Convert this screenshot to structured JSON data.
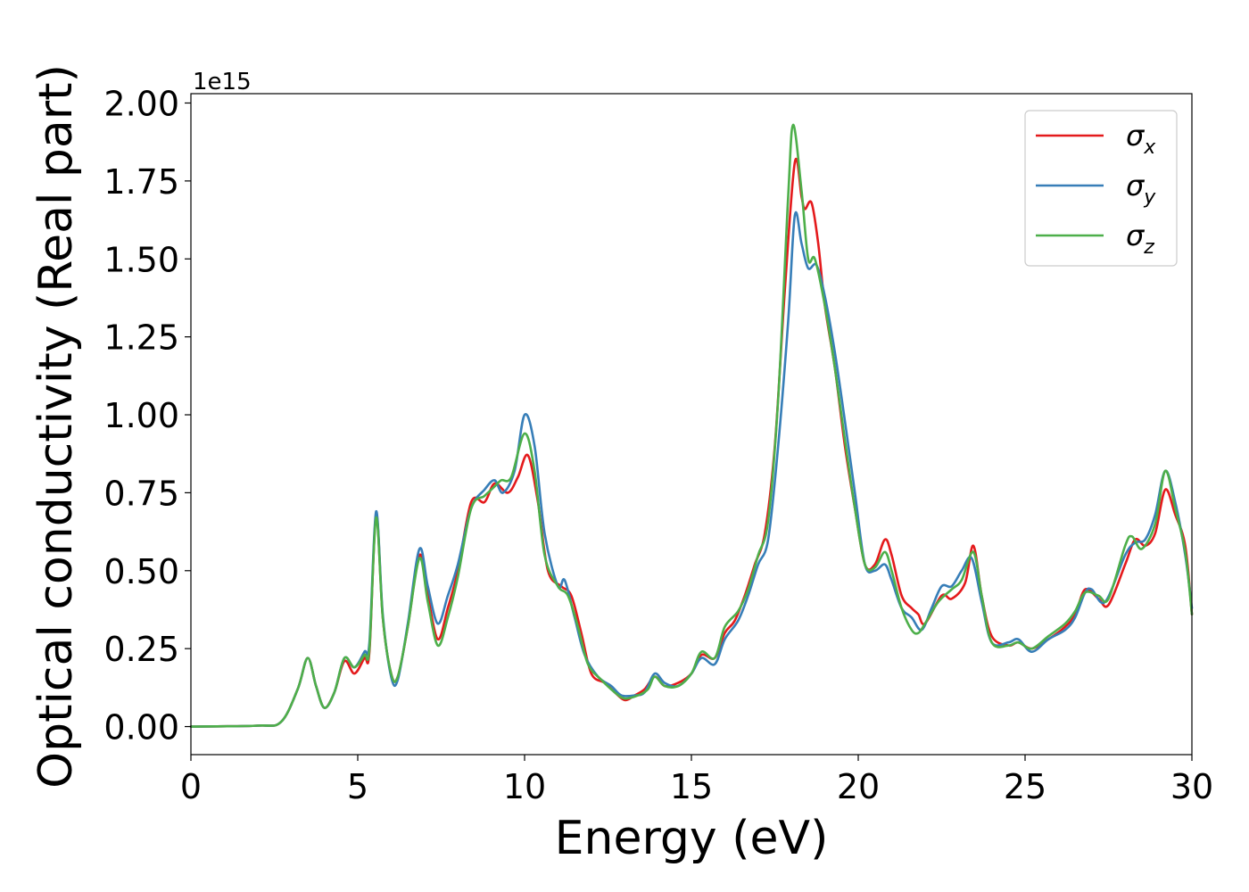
{
  "chart_data": {
    "type": "line",
    "xlabel": "Energy (eV)",
    "ylabel": "Optical conductivity (Real part)",
    "y_offset_label": "1e15",
    "xlim": [
      0,
      30
    ],
    "ylim": [
      -0.09,
      2.03
    ],
    "xticks": [
      0,
      5,
      10,
      15,
      20,
      25,
      30
    ],
    "xtick_labels": [
      "0",
      "5",
      "10",
      "15",
      "20",
      "25",
      "30"
    ],
    "yticks": [
      0.0,
      0.25,
      0.5,
      0.75,
      1.0,
      1.25,
      1.5,
      1.75,
      2.0
    ],
    "ytick_labels": [
      "0.00",
      "0.25",
      "0.50",
      "0.75",
      "1.00",
      "1.25",
      "1.50",
      "1.75",
      "2.00"
    ],
    "grid": false,
    "legend_position": "top-right",
    "series": [
      {
        "name": "σx",
        "base": "σ",
        "sub": "x",
        "color": "#e41a1c",
        "points": [
          [
            0,
            0
          ],
          [
            2,
            0.003
          ],
          [
            2.7,
            0.015
          ],
          [
            3.2,
            0.12
          ],
          [
            3.5,
            0.22
          ],
          [
            3.75,
            0.13
          ],
          [
            4.0,
            0.06
          ],
          [
            4.3,
            0.11
          ],
          [
            4.6,
            0.21
          ],
          [
            4.9,
            0.17
          ],
          [
            5.2,
            0.22
          ],
          [
            5.35,
            0.24
          ],
          [
            5.55,
            0.68
          ],
          [
            5.75,
            0.35
          ],
          [
            6.0,
            0.17
          ],
          [
            6.2,
            0.16
          ],
          [
            6.5,
            0.32
          ],
          [
            6.85,
            0.55
          ],
          [
            7.1,
            0.42
          ],
          [
            7.4,
            0.28
          ],
          [
            7.7,
            0.38
          ],
          [
            8.0,
            0.5
          ],
          [
            8.4,
            0.72
          ],
          [
            8.8,
            0.72
          ],
          [
            9.1,
            0.78
          ],
          [
            9.5,
            0.75
          ],
          [
            9.8,
            0.8
          ],
          [
            10.1,
            0.87
          ],
          [
            10.4,
            0.72
          ],
          [
            10.7,
            0.5
          ],
          [
            11.1,
            0.45
          ],
          [
            11.4,
            0.42
          ],
          [
            11.7,
            0.3
          ],
          [
            12.0,
            0.17
          ],
          [
            12.4,
            0.14
          ],
          [
            12.7,
            0.11
          ],
          [
            13.0,
            0.085
          ],
          [
            13.3,
            0.1
          ],
          [
            13.6,
            0.12
          ],
          [
            13.9,
            0.16
          ],
          [
            14.2,
            0.13
          ],
          [
            14.6,
            0.14
          ],
          [
            15.0,
            0.17
          ],
          [
            15.3,
            0.23
          ],
          [
            15.7,
            0.22
          ],
          [
            16.0,
            0.3
          ],
          [
            16.3,
            0.34
          ],
          [
            16.6,
            0.42
          ],
          [
            16.9,
            0.52
          ],
          [
            17.2,
            0.62
          ],
          [
            17.5,
            0.9
          ],
          [
            17.8,
            1.4
          ],
          [
            18.1,
            1.81
          ],
          [
            18.3,
            1.7
          ],
          [
            18.4,
            1.66
          ],
          [
            18.6,
            1.68
          ],
          [
            18.8,
            1.55
          ],
          [
            19.0,
            1.35
          ],
          [
            19.3,
            1.15
          ],
          [
            19.6,
            0.9
          ],
          [
            19.9,
            0.7
          ],
          [
            20.2,
            0.52
          ],
          [
            20.5,
            0.52
          ],
          [
            20.8,
            0.6
          ],
          [
            21.0,
            0.55
          ],
          [
            21.3,
            0.42
          ],
          [
            21.6,
            0.38
          ],
          [
            21.8,
            0.36
          ],
          [
            22.0,
            0.33
          ],
          [
            22.5,
            0.42
          ],
          [
            22.8,
            0.41
          ],
          [
            23.2,
            0.46
          ],
          [
            23.45,
            0.58
          ],
          [
            23.7,
            0.42
          ],
          [
            24.0,
            0.29
          ],
          [
            24.5,
            0.26
          ],
          [
            24.8,
            0.27
          ],
          [
            25.2,
            0.25
          ],
          [
            25.7,
            0.28
          ],
          [
            26.2,
            0.32
          ],
          [
            26.5,
            0.36
          ],
          [
            26.8,
            0.44
          ],
          [
            27.2,
            0.41
          ],
          [
            27.5,
            0.39
          ],
          [
            28.0,
            0.52
          ],
          [
            28.3,
            0.6
          ],
          [
            28.6,
            0.58
          ],
          [
            28.9,
            0.62
          ],
          [
            29.2,
            0.76
          ],
          [
            29.5,
            0.68
          ],
          [
            29.8,
            0.58
          ],
          [
            30.0,
            0.36
          ]
        ]
      },
      {
        "name": "σy",
        "base": "σ",
        "sub": "y",
        "color": "#377eb8",
        "points": [
          [
            0,
            0
          ],
          [
            2,
            0.003
          ],
          [
            2.7,
            0.015
          ],
          [
            3.2,
            0.12
          ],
          [
            3.5,
            0.22
          ],
          [
            3.75,
            0.13
          ],
          [
            4.0,
            0.06
          ],
          [
            4.3,
            0.11
          ],
          [
            4.6,
            0.22
          ],
          [
            4.9,
            0.19
          ],
          [
            5.2,
            0.24
          ],
          [
            5.35,
            0.27
          ],
          [
            5.55,
            0.69
          ],
          [
            5.75,
            0.36
          ],
          [
            6.0,
            0.16
          ],
          [
            6.2,
            0.15
          ],
          [
            6.5,
            0.33
          ],
          [
            6.85,
            0.57
          ],
          [
            7.1,
            0.45
          ],
          [
            7.4,
            0.33
          ],
          [
            7.7,
            0.42
          ],
          [
            8.0,
            0.52
          ],
          [
            8.4,
            0.7
          ],
          [
            8.8,
            0.76
          ],
          [
            9.1,
            0.79
          ],
          [
            9.35,
            0.75
          ],
          [
            9.7,
            0.82
          ],
          [
            10.0,
            1.0
          ],
          [
            10.3,
            0.9
          ],
          [
            10.6,
            0.62
          ],
          [
            11.0,
            0.45
          ],
          [
            11.2,
            0.47
          ],
          [
            11.5,
            0.35
          ],
          [
            11.8,
            0.23
          ],
          [
            12.2,
            0.16
          ],
          [
            12.6,
            0.13
          ],
          [
            12.9,
            0.1
          ],
          [
            13.3,
            0.1
          ],
          [
            13.6,
            0.11
          ],
          [
            13.9,
            0.17
          ],
          [
            14.2,
            0.14
          ],
          [
            14.6,
            0.13
          ],
          [
            15.0,
            0.17
          ],
          [
            15.3,
            0.22
          ],
          [
            15.7,
            0.2
          ],
          [
            16.0,
            0.28
          ],
          [
            16.4,
            0.34
          ],
          [
            16.7,
            0.42
          ],
          [
            17.0,
            0.52
          ],
          [
            17.3,
            0.6
          ],
          [
            17.6,
            0.9
          ],
          [
            17.9,
            1.3
          ],
          [
            18.1,
            1.64
          ],
          [
            18.3,
            1.55
          ],
          [
            18.5,
            1.47
          ],
          [
            18.75,
            1.48
          ],
          [
            19.0,
            1.38
          ],
          [
            19.3,
            1.2
          ],
          [
            19.6,
            0.98
          ],
          [
            19.9,
            0.75
          ],
          [
            20.2,
            0.52
          ],
          [
            20.5,
            0.5
          ],
          [
            20.8,
            0.52
          ],
          [
            21.0,
            0.47
          ],
          [
            21.3,
            0.38
          ],
          [
            21.6,
            0.35
          ],
          [
            21.9,
            0.31
          ],
          [
            22.2,
            0.38
          ],
          [
            22.5,
            0.45
          ],
          [
            22.8,
            0.45
          ],
          [
            23.1,
            0.5
          ],
          [
            23.4,
            0.54
          ],
          [
            23.7,
            0.4
          ],
          [
            24.0,
            0.27
          ],
          [
            24.5,
            0.27
          ],
          [
            24.8,
            0.28
          ],
          [
            25.2,
            0.24
          ],
          [
            25.7,
            0.28
          ],
          [
            26.2,
            0.31
          ],
          [
            26.5,
            0.35
          ],
          [
            26.8,
            0.43
          ],
          [
            27.0,
            0.44
          ],
          [
            27.4,
            0.4
          ],
          [
            28.0,
            0.55
          ],
          [
            28.3,
            0.59
          ],
          [
            28.6,
            0.6
          ],
          [
            28.9,
            0.68
          ],
          [
            29.2,
            0.82
          ],
          [
            29.5,
            0.72
          ],
          [
            29.8,
            0.55
          ],
          [
            30.0,
            0.38
          ]
        ]
      },
      {
        "name": "σz",
        "base": "σ",
        "sub": "z",
        "color": "#4daf4a",
        "points": [
          [
            0,
            0
          ],
          [
            2,
            0.003
          ],
          [
            2.7,
            0.015
          ],
          [
            3.2,
            0.12
          ],
          [
            3.5,
            0.22
          ],
          [
            3.75,
            0.13
          ],
          [
            4.0,
            0.06
          ],
          [
            4.3,
            0.11
          ],
          [
            4.6,
            0.22
          ],
          [
            4.9,
            0.19
          ],
          [
            5.2,
            0.23
          ],
          [
            5.35,
            0.25
          ],
          [
            5.55,
            0.67
          ],
          [
            5.75,
            0.35
          ],
          [
            6.0,
            0.17
          ],
          [
            6.2,
            0.16
          ],
          [
            6.5,
            0.32
          ],
          [
            6.85,
            0.54
          ],
          [
            7.1,
            0.4
          ],
          [
            7.4,
            0.26
          ],
          [
            7.7,
            0.35
          ],
          [
            8.0,
            0.48
          ],
          [
            8.4,
            0.7
          ],
          [
            8.8,
            0.74
          ],
          [
            9.1,
            0.77
          ],
          [
            9.3,
            0.79
          ],
          [
            9.6,
            0.8
          ],
          [
            10.0,
            0.94
          ],
          [
            10.3,
            0.82
          ],
          [
            10.6,
            0.55
          ],
          [
            11.0,
            0.45
          ],
          [
            11.3,
            0.42
          ],
          [
            11.6,
            0.32
          ],
          [
            11.9,
            0.2
          ],
          [
            12.3,
            0.15
          ],
          [
            12.7,
            0.11
          ],
          [
            13.0,
            0.09
          ],
          [
            13.4,
            0.1
          ],
          [
            13.7,
            0.12
          ],
          [
            13.9,
            0.16
          ],
          [
            14.2,
            0.13
          ],
          [
            14.6,
            0.13
          ],
          [
            15.0,
            0.17
          ],
          [
            15.3,
            0.24
          ],
          [
            15.7,
            0.22
          ],
          [
            16.0,
            0.32
          ],
          [
            16.4,
            0.37
          ],
          [
            16.7,
            0.44
          ],
          [
            17.0,
            0.55
          ],
          [
            17.3,
            0.66
          ],
          [
            17.6,
            1.05
          ],
          [
            17.9,
            1.7
          ],
          [
            18.05,
            1.93
          ],
          [
            18.3,
            1.72
          ],
          [
            18.5,
            1.5
          ],
          [
            18.7,
            1.5
          ],
          [
            19.0,
            1.35
          ],
          [
            19.3,
            1.15
          ],
          [
            19.6,
            0.92
          ],
          [
            19.9,
            0.7
          ],
          [
            20.2,
            0.52
          ],
          [
            20.5,
            0.51
          ],
          [
            20.8,
            0.56
          ],
          [
            21.0,
            0.5
          ],
          [
            21.3,
            0.38
          ],
          [
            21.6,
            0.31
          ],
          [
            21.8,
            0.3
          ],
          [
            22.0,
            0.33
          ],
          [
            22.4,
            0.4
          ],
          [
            22.8,
            0.44
          ],
          [
            23.1,
            0.47
          ],
          [
            23.45,
            0.56
          ],
          [
            23.7,
            0.42
          ],
          [
            24.0,
            0.27
          ],
          [
            24.5,
            0.26
          ],
          [
            24.8,
            0.27
          ],
          [
            25.2,
            0.25
          ],
          [
            25.7,
            0.29
          ],
          [
            26.2,
            0.33
          ],
          [
            26.5,
            0.37
          ],
          [
            26.8,
            0.43
          ],
          [
            27.2,
            0.42
          ],
          [
            27.5,
            0.41
          ],
          [
            28.0,
            0.58
          ],
          [
            28.2,
            0.61
          ],
          [
            28.5,
            0.57
          ],
          [
            28.9,
            0.65
          ],
          [
            29.2,
            0.82
          ],
          [
            29.5,
            0.7
          ],
          [
            29.8,
            0.56
          ],
          [
            30.0,
            0.36
          ]
        ]
      }
    ]
  }
}
